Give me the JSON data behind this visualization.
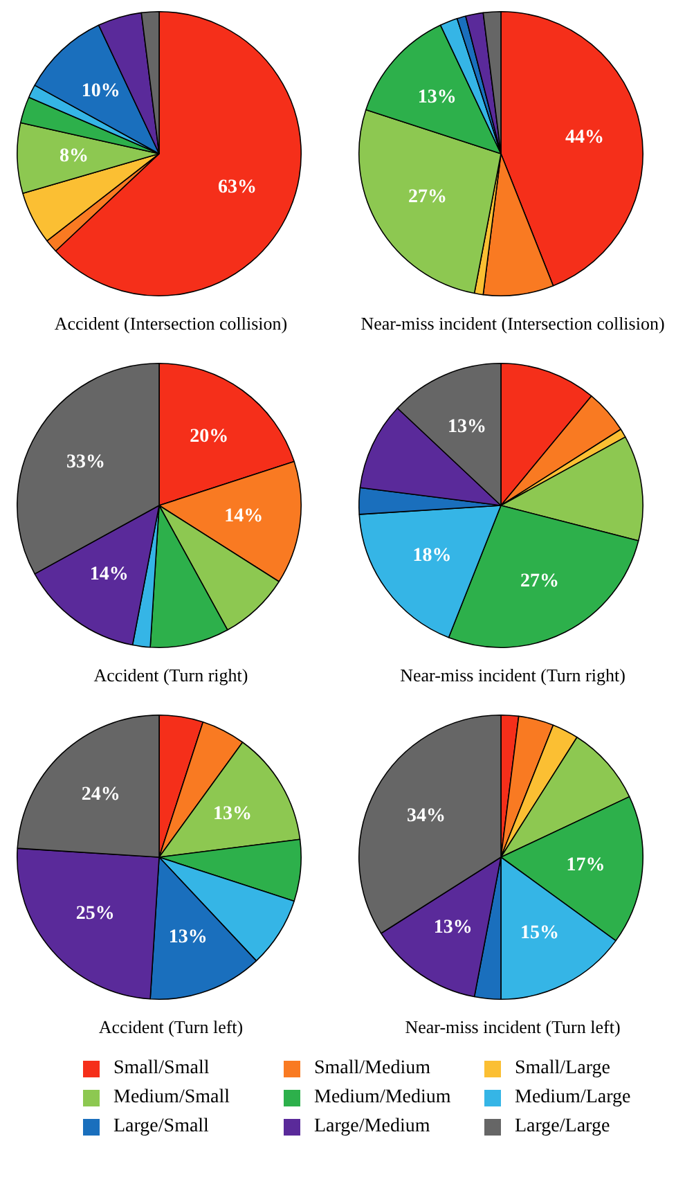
{
  "chart_data": [
    {
      "type": "pie",
      "title": "Accident (Intersection collision)",
      "categories": [
        "Small/Small",
        "Small/Medium",
        "Small/Large",
        "Medium/Small",
        "Medium/Medium",
        "Medium/Large",
        "Large/Small",
        "Large/Medium",
        "Large/Large"
      ],
      "values": [
        63,
        1.5,
        6,
        8,
        3,
        1.5,
        10,
        5,
        2
      ],
      "value_labels": [
        "63%",
        null,
        null,
        "8%",
        null,
        null,
        "10%",
        null,
        null
      ],
      "colors": [
        "#f52f1a",
        "#f97a22",
        "#fbbf33",
        "#8dc851",
        "#2db04b",
        "#35b5e6",
        "#1a6fbd",
        "#5a2a9a",
        "#666666"
      ],
      "legend": "bottom"
    },
    {
      "type": "pie",
      "title": "Near-miss incident (Intersection collision)",
      "categories": [
        null,
        null,
        null,
        null,
        null,
        null,
        null,
        null,
        null
      ],
      "values": [
        44,
        8,
        1,
        27,
        13,
        2,
        1,
        2,
        2
      ],
      "value_labels": [
        "44%",
        null,
        null,
        "27%",
        "13%",
        null,
        null,
        null,
        null
      ],
      "colors": [
        "#f52f1a",
        "#f97a22",
        "#fbbf33",
        "#8dc851",
        "#2db04b",
        "#35b5e6",
        "#1a6fbd",
        "#5a2a9a",
        "#666666"
      ]
    },
    {
      "type": "pie",
      "title": "Accident (Turn right)",
      "categories": [
        null,
        null,
        null,
        null,
        null,
        null,
        null,
        null,
        null
      ],
      "values": [
        20,
        14,
        0,
        8,
        9,
        2,
        0,
        14,
        33
      ],
      "value_labels": [
        "20%",
        "14%",
        null,
        null,
        null,
        null,
        null,
        "14%",
        "33%"
      ],
      "colors": [
        "#f52f1a",
        "#f97a22",
        "#fbbf33",
        "#8dc851",
        "#2db04b",
        "#35b5e6",
        "#1a6fbd",
        "#5a2a9a",
        "#666666"
      ]
    },
    {
      "type": "pie",
      "title": "Near-miss incident (Turn right)",
      "categories": [
        null,
        null,
        null,
        null,
        null,
        null,
        null,
        null,
        null
      ],
      "values": [
        11,
        5,
        1,
        12,
        27,
        18,
        3,
        10,
        13
      ],
      "value_labels": [
        null,
        null,
        null,
        null,
        "27%",
        "18%",
        null,
        null,
        "13%"
      ],
      "colors": [
        "#f52f1a",
        "#f97a22",
        "#fbbf33",
        "#8dc851",
        "#2db04b",
        "#35b5e6",
        "#1a6fbd",
        "#5a2a9a",
        "#666666"
      ]
    },
    {
      "type": "pie",
      "title": "Accident (Turn left)",
      "categories": [
        null,
        null,
        null,
        null,
        null,
        null,
        null,
        null,
        null
      ],
      "values": [
        5,
        5,
        0,
        13,
        7,
        8,
        13,
        25,
        24
      ],
      "value_labels": [
        null,
        null,
        null,
        "13%",
        null,
        null,
        "13%",
        "25%",
        "24%"
      ],
      "colors": [
        "#f52f1a",
        "#f97a22",
        "#fbbf33",
        "#8dc851",
        "#2db04b",
        "#35b5e6",
        "#1a6fbd",
        "#5a2a9a",
        "#666666"
      ]
    },
    {
      "type": "pie",
      "title": "Near-miss incident (Turn left)",
      "categories": [
        null,
        null,
        null,
        null,
        null,
        null,
        null,
        null,
        null
      ],
      "values": [
        2,
        4,
        3,
        9,
        17,
        15,
        3,
        13,
        34
      ],
      "value_labels": [
        null,
        null,
        null,
        null,
        "17%",
        "15%",
        null,
        "13%",
        "34%"
      ],
      "colors": [
        "#f52f1a",
        "#f97a22",
        "#fbbf33",
        "#8dc851",
        "#2db04b",
        "#35b5e6",
        "#1a6fbd",
        "#5a2a9a",
        "#666666"
      ]
    }
  ]
}
